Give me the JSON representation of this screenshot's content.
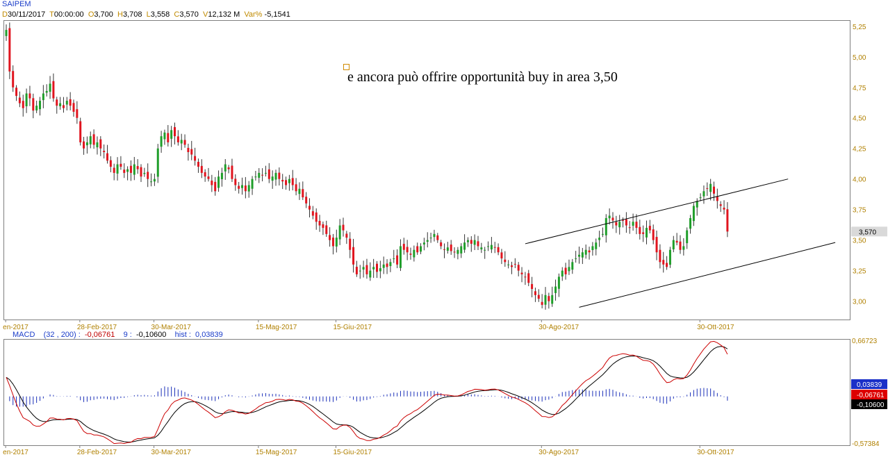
{
  "header": {
    "symbol": "SAIPEM",
    "d_label": "D",
    "date": "30/11/2017",
    "t_label": "T",
    "time": "00:00:00",
    "o_label": "O",
    "open": "3,700",
    "h_label": "H",
    "high": "3,708",
    "l_label": "L",
    "low": "3,558",
    "c_label": "C",
    "close": "3,570",
    "v_label": "V",
    "volume": "12,132 M",
    "var_label": "Var%",
    "var": "-5,1541"
  },
  "annotation": {
    "text": "e ancora può offrire opportunità buy in area 3,50"
  },
  "macd_header": {
    "name": "MACD",
    "params": "(32 , 200) :",
    "macd_value": "-0,06761",
    "signal_label": "9 :",
    "signal_value": "-0,10600",
    "hist_label": "hist :",
    "hist_value": "0,03839"
  },
  "chart_data": [
    {
      "type": "candlestick",
      "series_name": "SAIPEM",
      "ylim": [
        2.85,
        5.3
      ],
      "y_ticks": [
        "5,25",
        "5,00",
        "4,75",
        "4,50",
        "4,25",
        "4,00",
        "3,75",
        "3,50",
        "3,25",
        "3,00"
      ],
      "y_tick_values": [
        5.25,
        5.0,
        4.75,
        4.5,
        4.25,
        4.0,
        3.75,
        3.5,
        3.25,
        3.0
      ],
      "x_ticks": [
        "en-2017",
        "28-Feb-2017",
        "30-Mar-2017",
        "15-Mag-2017",
        "15-Giu-2017",
        "30-Ago-2017",
        "30-Ott-2017"
      ],
      "x_tick_index": [
        -1,
        21,
        43,
        74,
        97,
        158,
        205
      ],
      "last_price_label": "3,570",
      "last_price": 3.57,
      "closes": [
        5.22,
        4.88,
        4.75,
        4.68,
        4.62,
        4.58,
        4.7,
        4.66,
        4.56,
        4.6,
        4.64,
        4.7,
        4.72,
        4.78,
        4.66,
        4.6,
        4.62,
        4.58,
        4.64,
        4.6,
        4.55,
        4.5,
        4.3,
        4.25,
        4.3,
        4.35,
        4.28,
        4.3,
        4.25,
        4.22,
        4.15,
        4.1,
        4.05,
        4.12,
        4.1,
        4.05,
        4.08,
        4.05,
        4.12,
        4.08,
        4.02,
        4.05,
        4.0,
        3.98,
        4.0,
        4.25,
        4.35,
        4.38,
        4.3,
        4.4,
        4.35,
        4.3,
        4.32,
        4.28,
        4.22,
        4.2,
        4.15,
        4.1,
        4.05,
        4.02,
        4.0,
        3.95,
        3.9,
        4.02,
        4.05,
        4.12,
        4.08,
        4.0,
        3.95,
        3.92,
        3.95,
        3.9,
        3.95,
        4.0,
        4.02,
        4.05,
        4.03,
        4.05,
        4.0,
        4.02,
        4.05,
        4.0,
        3.98,
        3.95,
        4.0,
        3.95,
        3.9,
        3.92,
        3.85,
        3.8,
        3.75,
        3.7,
        3.65,
        3.62,
        3.6,
        3.55,
        3.5,
        3.45,
        3.52,
        3.62,
        3.58,
        3.52,
        3.42,
        3.3,
        3.22,
        3.25,
        3.28,
        3.22,
        3.25,
        3.28,
        3.24,
        3.27,
        3.3,
        3.28,
        3.32,
        3.35,
        3.3,
        3.45,
        3.42,
        3.4,
        3.38,
        3.42,
        3.4,
        3.45,
        3.48,
        3.5,
        3.52,
        3.55,
        3.5,
        3.45,
        3.42,
        3.44,
        3.41,
        3.4,
        3.42,
        3.45,
        3.48,
        3.5,
        3.47,
        3.5,
        3.45,
        3.44,
        3.42,
        3.45,
        3.46,
        3.44,
        3.4,
        3.35,
        3.32,
        3.3,
        3.28,
        3.3,
        3.25,
        3.22,
        3.2,
        3.15,
        3.1,
        3.05,
        3.02,
        2.97,
        3.05,
        3.0,
        3.05,
        3.12,
        3.2,
        3.25,
        3.22,
        3.28,
        3.32,
        3.35,
        3.38,
        3.4,
        3.42,
        3.4,
        3.45,
        3.48,
        3.52,
        3.55,
        3.68,
        3.7,
        3.66,
        3.62,
        3.65,
        3.66,
        3.62,
        3.6,
        3.65,
        3.6,
        3.55,
        3.55,
        3.6,
        3.58,
        3.5,
        3.4,
        3.32,
        3.3,
        3.28,
        3.42,
        3.5,
        3.48,
        3.42,
        3.45,
        3.58,
        3.68,
        3.78,
        3.82,
        3.85,
        3.9,
        3.92,
        3.96,
        3.88,
        3.82,
        3.78,
        3.75,
        3.57
      ]
    },
    {
      "type": "line",
      "series": [
        {
          "name": "MACD",
          "color": "#cc0000"
        },
        {
          "name": "Signal",
          "color": "#000000"
        },
        {
          "name": "hist",
          "color": "#1a2fb8"
        }
      ],
      "ylim": [
        -0.57384,
        0.66723
      ],
      "y_ticks": [
        "0,66723",
        "-0,57384"
      ],
      "last_labels": [
        "0,03839",
        "-0,06761",
        "-0,10600"
      ],
      "last_label_colors": [
        "#1a2fc8",
        "#dd0000",
        "#000000"
      ]
    }
  ]
}
